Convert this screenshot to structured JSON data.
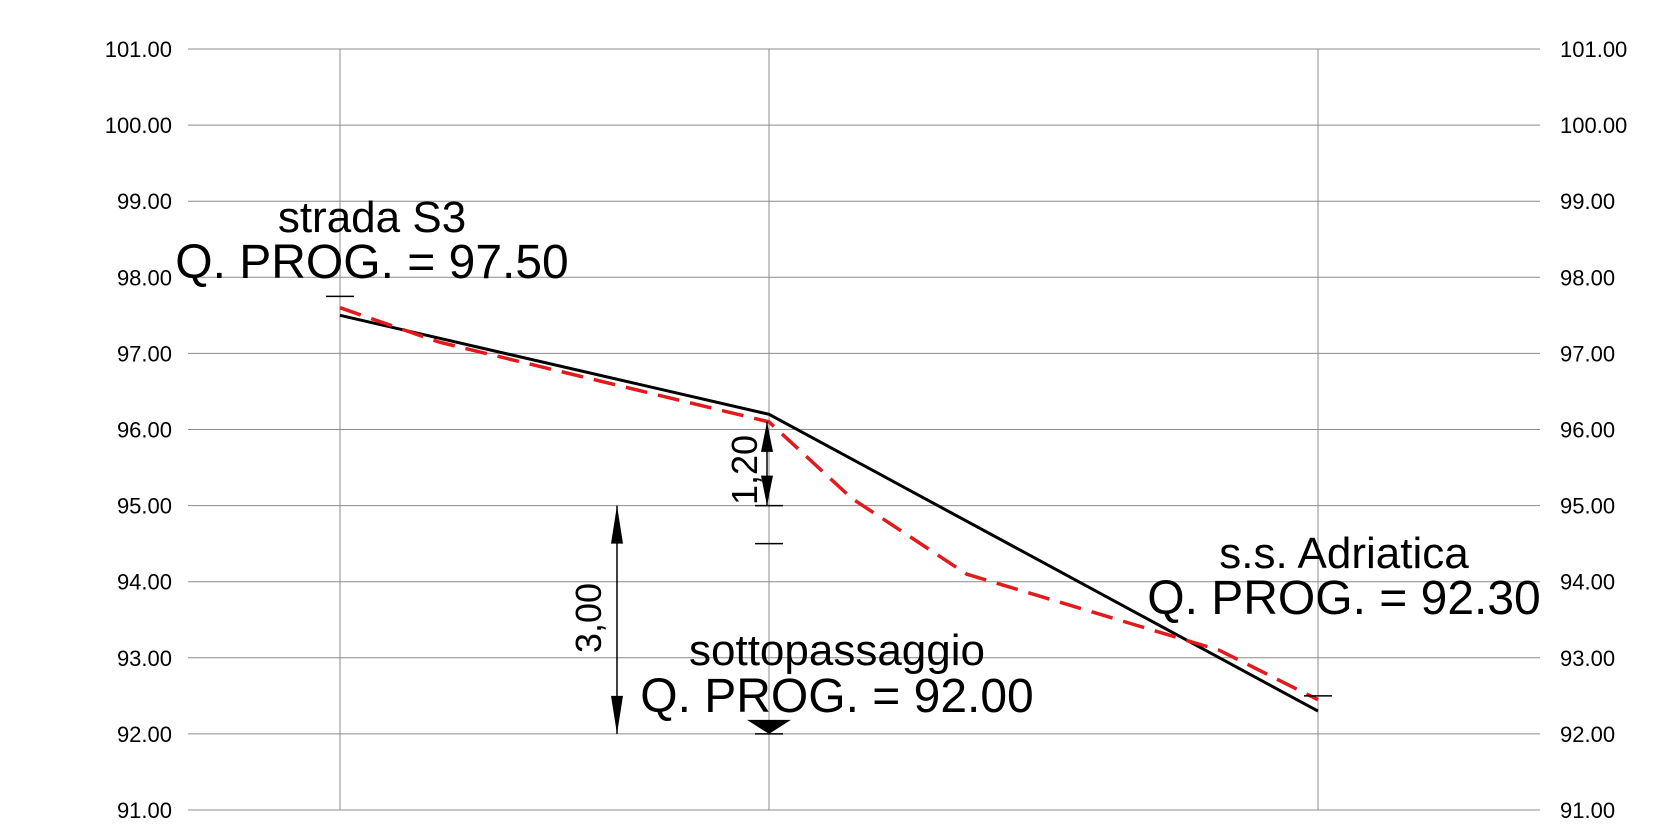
{
  "chart_data": {
    "type": "line",
    "title": "",
    "xlabel": "",
    "ylabel": "",
    "ylim": [
      91,
      101
    ],
    "yticks": [
      "101.00",
      "100.00",
      "99.00",
      "98.00",
      "97.00",
      "96.00",
      "95.00",
      "94.00",
      "93.00",
      "92.00",
      "91.00"
    ],
    "x_stations": [
      0,
      1,
      2
    ],
    "grid": true,
    "series": [
      {
        "values": [
          [
            0,
            97.5
          ],
          [
            1,
            96.2
          ],
          [
            2,
            92.3
          ]
        ],
        "color": "#000000",
        "style": "solid"
      },
      {
        "values": [
          [
            0,
            97.6
          ],
          [
            0.23,
            97.15
          ],
          [
            1,
            96.1
          ],
          [
            1.15,
            95.1
          ],
          [
            1.36,
            94.1
          ],
          [
            1.82,
            93.1
          ],
          [
            2,
            92.45
          ]
        ],
        "color": "#e31a1c",
        "style": "dashed"
      }
    ]
  },
  "labels": {
    "start_name": "strada S3",
    "start_quote": "Q. PROG. = 97.50",
    "middle_name": "sottopassaggio",
    "middle_quote": "Q. PROG. = 92.00",
    "end_name": "s.s. Adriatica",
    "end_quote": "Q. PROG. = 92.30"
  },
  "dimensions": {
    "short": "1,20",
    "long": "3,00"
  }
}
